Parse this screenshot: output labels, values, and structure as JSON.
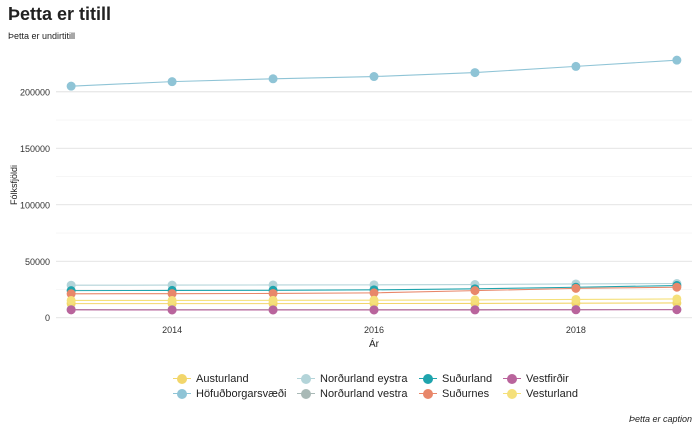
{
  "chart_data": {
    "type": "line",
    "title": "Þetta er titill",
    "subtitle": "Þetta er undirtitill",
    "caption": "Þetta er caption",
    "xlabel": "Ár",
    "ylabel": "Fólksfjöldi",
    "xlim": [
      2012.85,
      2019.15
    ],
    "ylim": [
      -2000,
      237000
    ],
    "x_ticks": [
      2014,
      2016,
      2018
    ],
    "y_ticks": [
      0,
      50000,
      100000,
      150000,
      200000
    ],
    "y_tick_labels": [
      "0",
      "50000",
      "100000",
      "150000",
      "200000"
    ],
    "grid": true,
    "legend_position": "bottom",
    "x": [
      2013,
      2014,
      2015,
      2016,
      2017,
      2018,
      2019
    ],
    "series": [
      {
        "name": "Austurland",
        "color": "#f2d66b",
        "values": [
          12500,
          12500,
          12500,
          12600,
          12700,
          12900,
          13100
        ]
      },
      {
        "name": "Höfuðborgarsvæði",
        "color": "#8fc4d6",
        "values": [
          205000,
          209000,
          211500,
          213500,
          217000,
          222500,
          228000
        ]
      },
      {
        "name": "Norðurland eystra",
        "color": "#b3d4d9",
        "values": [
          28800,
          28900,
          29000,
          29100,
          29400,
          29900,
          30300
        ]
      },
      {
        "name": "Norðurland vestra",
        "color": "#a9b9b6",
        "values": [
          7200,
          7150,
          7100,
          7100,
          7200,
          7300,
          7300
        ]
      },
      {
        "name": "Suðurland",
        "color": "#1fa4ad",
        "values": [
          24000,
          24200,
          24300,
          24700,
          25600,
          27000,
          28500
        ]
      },
      {
        "name": "Suðurnes",
        "color": "#e8876a",
        "values": [
          21200,
          21300,
          21500,
          22000,
          24000,
          26000,
          27000
        ]
      },
      {
        "name": "Vestfirðir",
        "color": "#b9649c",
        "values": [
          7000,
          6900,
          6900,
          6900,
          6950,
          7050,
          7100
        ]
      },
      {
        "name": "Vesturland",
        "color": "#f5e07a",
        "values": [
          15300,
          15300,
          15400,
          15500,
          15800,
          16200,
          16600
        ]
      }
    ]
  }
}
